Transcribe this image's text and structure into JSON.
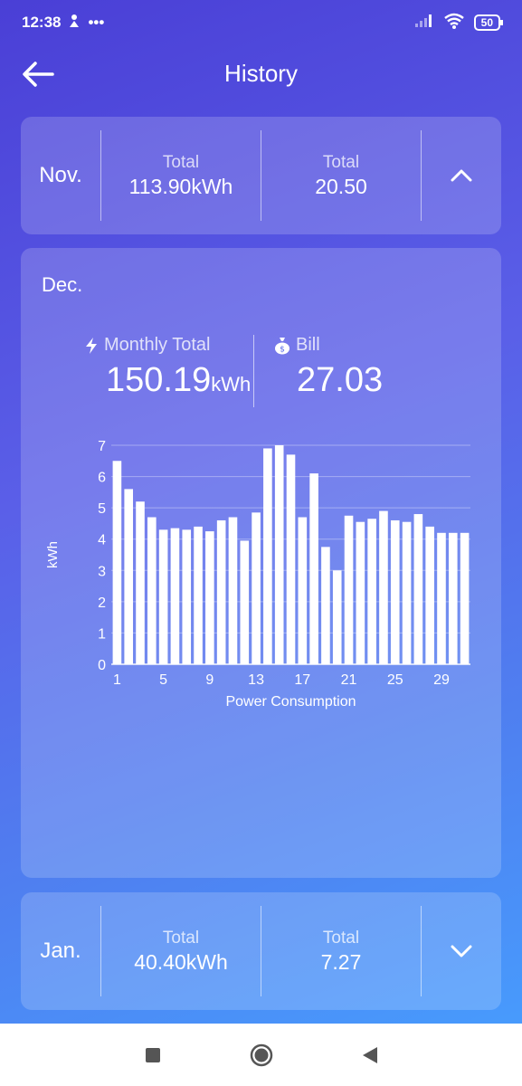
{
  "status_bar": {
    "time": "12:38",
    "dots": "•••",
    "battery": "50"
  },
  "header": {
    "title": "History"
  },
  "prev_month": {
    "month": "Nov.",
    "total_label": "Total",
    "total_kwh": "113.90kWh",
    "bill_label": "Total",
    "bill_value": "20.50"
  },
  "current_month": {
    "month": "Dec.",
    "monthly_total_label": "Monthly Total",
    "monthly_total_value": "150.19",
    "monthly_total_unit": "kWh",
    "bill_label": "Bill",
    "bill_value": "27.03"
  },
  "next_month": {
    "month": "Jan.",
    "total_label": "Total",
    "total_kwh": "40.40kWh",
    "bill_label": "Total",
    "bill_value": "7.27"
  },
  "chart_data": {
    "type": "bar",
    "x": [
      1,
      2,
      3,
      4,
      5,
      6,
      7,
      8,
      9,
      10,
      11,
      12,
      13,
      14,
      15,
      16,
      17,
      18,
      19,
      20,
      21,
      22,
      23,
      24,
      25,
      26,
      27,
      28,
      29,
      30,
      31
    ],
    "values": [
      6.5,
      5.6,
      5.2,
      4.7,
      4.3,
      4.35,
      4.3,
      4.4,
      4.25,
      4.6,
      4.7,
      3.95,
      4.85,
      6.9,
      7.0,
      6.7,
      4.7,
      6.1,
      3.75,
      3.0,
      4.75,
      4.55,
      4.65,
      4.9,
      4.6,
      4.55,
      4.8,
      4.4,
      4.2,
      4.2,
      4.2
    ],
    "x_ticks": [
      "1",
      "5",
      "9",
      "13",
      "17",
      "21",
      "25",
      "29"
    ],
    "y_ticks": [
      "0",
      "1",
      "2",
      "3",
      "4",
      "5",
      "6",
      "7"
    ],
    "ylim": [
      0,
      7
    ],
    "ylabel": "kWh",
    "xlabel": "Power Consumption",
    "grid": true,
    "bar_color": "#ffffff"
  }
}
